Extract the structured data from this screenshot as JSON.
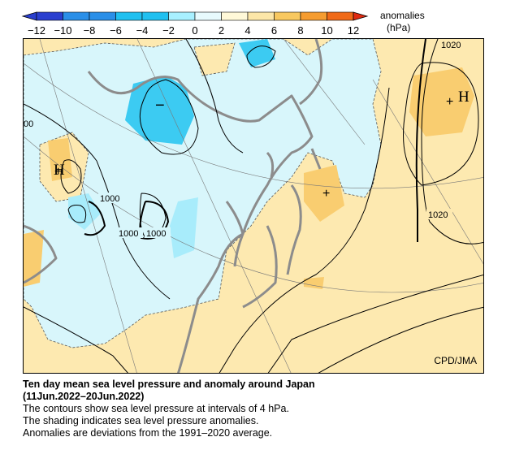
{
  "colorbar": {
    "ticks": [
      "−12",
      "−10",
      "−8",
      "−6",
      "−4",
      "−2",
      "0",
      "2",
      "4",
      "6",
      "8",
      "10",
      "12"
    ],
    "units_line1": "anomalies",
    "units_line2": "(hPa)",
    "colors": [
      "#2a3fcf",
      "#2a8fe8",
      "#20c0f0",
      "#a8f0ff",
      "#e8fafd",
      "#fff8d8",
      "#fce6a8",
      "#f8c860",
      "#f59c30",
      "#f06a18",
      "#e02a10"
    ]
  },
  "map": {
    "contour_labels": [
      "1020",
      "1020",
      "1000",
      "1000",
      "1000",
      "00"
    ],
    "pressure_centers": [
      "H",
      "H",
      "−",
      "+",
      "+",
      "+"
    ],
    "credit": "CPD/JMA",
    "colors": {
      "positive_anomaly": "#fde9b0",
      "strong_positive": "#f9cd70",
      "negative_anomaly": "#d8f6fb",
      "strong_negative": "#3ccbf2",
      "coastline": "#8c8c8c"
    }
  },
  "caption": {
    "title_line1": "Ten day mean sea level pressure and anomaly around Japan",
    "title_line2": "(11Jun.2022–20Jun.2022)",
    "line1": "The contours show sea level pressure at intervals of 4 hPa.",
    "line2": "The shading indicates sea level pressure anomalies.",
    "line3": "Anomalies are deviations from the 1991–2020 average."
  }
}
